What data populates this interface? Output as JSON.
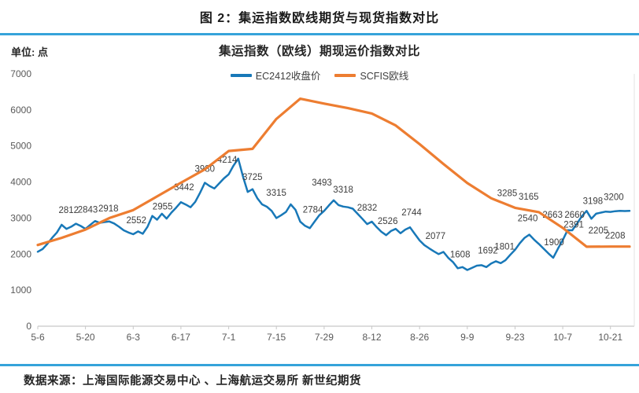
{
  "header": {
    "title": "图 2：集运指数欧线期货与现货指数对比"
  },
  "chart": {
    "unit_label": "单位: 点",
    "title": "集运指数（欧线）期现运价指数对比",
    "legend": [
      {
        "label": "EC2412收盘价",
        "color": "#1878b8"
      },
      {
        "label": "SCFIS欧线",
        "color": "#ed7d31"
      }
    ],
    "accent_rule_color": "#35a3da",
    "axis_color": "#c8c8c8",
    "label_color": "#595959"
  },
  "chart_data": {
    "type": "line",
    "title": "集运指数（欧线）期现运价指数对比",
    "xlabel": "",
    "ylabel": "单位: 点",
    "ylim": [
      0,
      7000
    ],
    "y_tick_step": 1000,
    "grid": false,
    "legend_position": "top",
    "x_count": 125,
    "x_tick_labels": [
      "5-6",
      "5-20",
      "6-3",
      "6-17",
      "7-1",
      "7-15",
      "7-29",
      "8-12",
      "8-26",
      "9-9",
      "9-23",
      "10-7",
      "10-21"
    ],
    "series": [
      {
        "name": "EC2412收盘价",
        "color": "#1878b8",
        "values": [
          2065,
          2140,
          2280,
          2450,
          2600,
          2812,
          2700,
          2760,
          2843,
          2780,
          2700,
          2810,
          2918,
          2868,
          2890,
          2905,
          2850,
          2760,
          2660,
          2600,
          2552,
          2630,
          2565,
          2760,
          3060,
          2955,
          3120,
          2985,
          3150,
          3290,
          3442,
          3375,
          3300,
          3450,
          3700,
          3980,
          3890,
          3820,
          3960,
          4100,
          4214,
          4450,
          4650,
          4150,
          3725,
          3800,
          3550,
          3380,
          3315,
          3200,
          3000,
          3080,
          3170,
          3380,
          3230,
          2900,
          2784,
          2720,
          2900,
          3080,
          3200,
          3350,
          3493,
          3360,
          3318,
          3300,
          3260,
          3120,
          2980,
          2832,
          2900,
          2750,
          2620,
          2526,
          2640,
          2700,
          2580,
          2680,
          2744,
          2560,
          2380,
          2250,
          2160,
          2077,
          2000,
          2060,
          1900,
          1780,
          1608,
          1640,
          1560,
          1620,
          1680,
          1692,
          1640,
          1740,
          1801,
          1750,
          1830,
          1980,
          2120,
          2300,
          2450,
          2540,
          2400,
          2280,
          2150,
          2020,
          1900,
          2150,
          2391,
          2663,
          2660,
          2850,
          3050,
          3198,
          2980,
          3120,
          3150,
          3180,
          3170,
          3190,
          3200,
          3195,
          3200
        ],
        "labeled_points": [
          [
            5,
            2812,
            9,
            -19
          ],
          [
            8,
            2843,
            15,
            -18
          ],
          [
            12,
            2918,
            17,
            -16
          ],
          [
            20,
            2552,
            4,
            -18
          ],
          [
            25,
            2955,
            7,
            -17
          ],
          [
            30,
            3442,
            4,
            -19
          ],
          [
            35,
            3980,
            0,
            -18
          ],
          [
            40,
            4214,
            -2,
            -19
          ],
          [
            44,
            3725,
            6,
            -19
          ],
          [
            48,
            3315,
            12,
            -18
          ],
          [
            56,
            2784,
            10,
            -21
          ],
          [
            62,
            3493,
            -15,
            -23
          ],
          [
            64,
            3318,
            0,
            -22
          ],
          [
            69,
            2832,
            0,
            -21
          ],
          [
            73,
            2526,
            2,
            -18
          ],
          [
            78,
            2744,
            2,
            -19
          ],
          [
            83,
            2077,
            2,
            -20
          ],
          [
            88,
            1608,
            3,
            -18
          ],
          [
            93,
            1692,
            8,
            -19
          ],
          [
            96,
            1801,
            11,
            -19
          ],
          [
            103,
            2540,
            -2,
            -21
          ],
          [
            108,
            1900,
            1,
            -20
          ],
          [
            110,
            2391,
            14,
            -20
          ],
          [
            111,
            2663,
            -19,
            -20
          ],
          [
            112,
            2660,
            3,
            -20
          ],
          [
            115,
            3198,
            8,
            -13
          ],
          [
            122,
            3200,
            -8,
            -18
          ]
        ]
      },
      {
        "name": "SCFIS欧线",
        "color": "#ed7d31",
        "points": [
          [
            0,
            2252
          ],
          [
            5,
            2450
          ],
          [
            10,
            2680
          ],
          [
            15,
            3000
          ],
          [
            20,
            3220
          ],
          [
            25,
            3600
          ],
          [
            30,
            3980
          ],
          [
            35,
            4350
          ],
          [
            40,
            4860
          ],
          [
            45,
            4920
          ],
          [
            50,
            5750
          ],
          [
            55,
            6310
          ],
          [
            60,
            6175
          ],
          [
            65,
            6050
          ],
          [
            70,
            5900
          ],
          [
            75,
            5570
          ],
          [
            80,
            5050
          ],
          [
            85,
            4500
          ],
          [
            90,
            3970
          ],
          [
            95,
            3550
          ],
          [
            100,
            3285
          ],
          [
            105,
            3165
          ],
          [
            110,
            2727
          ],
          [
            115,
            2205
          ],
          [
            120,
            2208
          ],
          [
            124,
            2208
          ]
        ],
        "labeled_points": [
          [
            100,
            3285,
            -10,
            -19
          ],
          [
            105,
            3165,
            -13,
            -20
          ],
          [
            115,
            2205,
            15,
            -21
          ],
          [
            120,
            2208,
            6,
            -14
          ]
        ]
      }
    ]
  },
  "footer": {
    "source": "数据来源：上海国际能源交易中心 、上海航运交易所 新世纪期货"
  }
}
